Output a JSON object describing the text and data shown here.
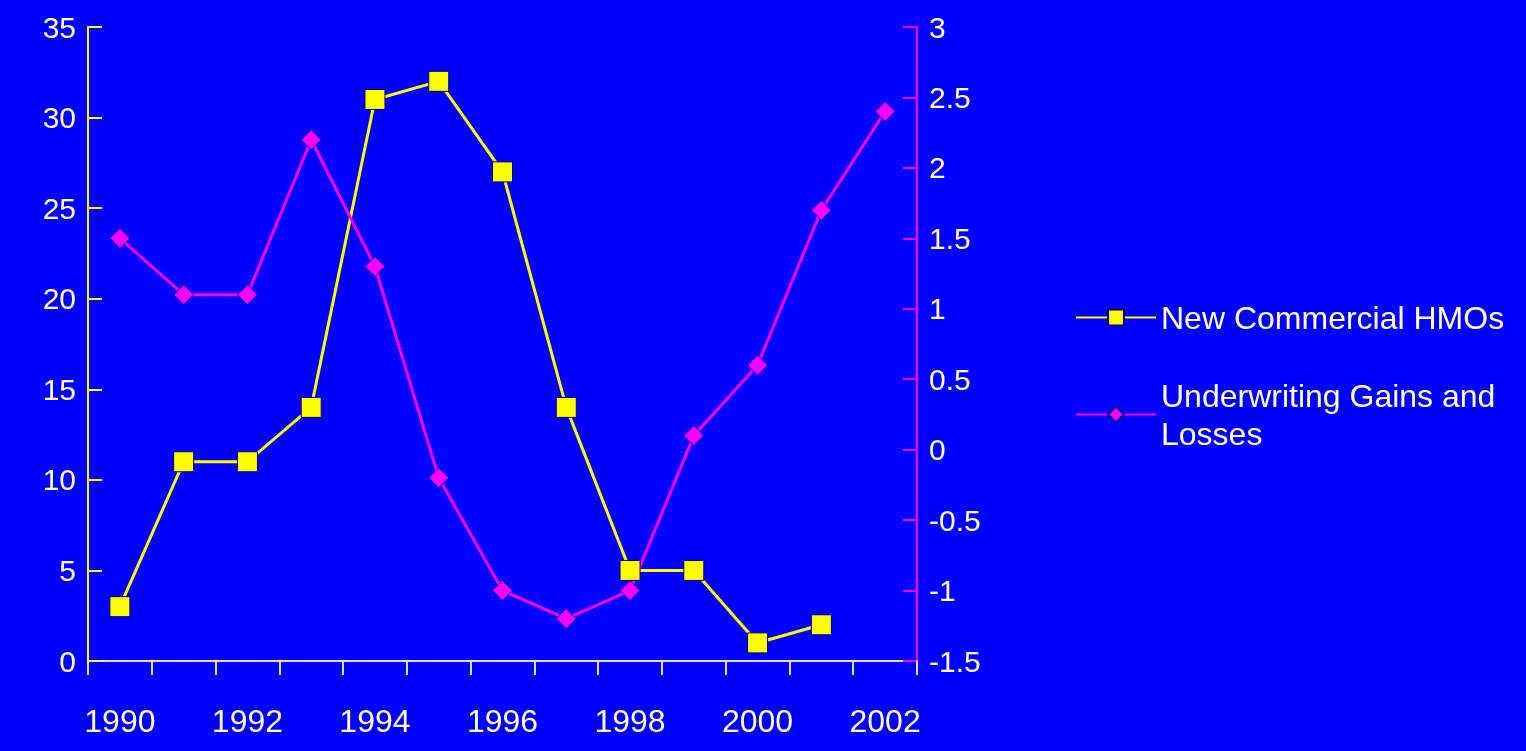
{
  "chart_data": {
    "type": "line",
    "categories": [
      "1990",
      null,
      "1992",
      null,
      "1994",
      null,
      "1996",
      null,
      "1998",
      null,
      "2000",
      null,
      "2002"
    ],
    "series": [
      {
        "name": "New Commercial HMOs",
        "color": "#ffff00",
        "marker": "square",
        "values": [
          3,
          11,
          11,
          14,
          31,
          32,
          27,
          14,
          5,
          5,
          1,
          2,
          null
        ]
      },
      {
        "name": "Underwriting Gains and Losses",
        "color": "#ff00ff",
        "marker": "diamond",
        "axis": "y2",
        "values": [
          1.5,
          1.1,
          1.1,
          2.2,
          1.3,
          -0.2,
          -1.0,
          -1.2,
          -1.0,
          0.1,
          0.6,
          1.7,
          2.4
        ]
      }
    ],
    "ylim": [
      0,
      35
    ],
    "yticks": [
      0,
      5,
      10,
      15,
      20,
      25,
      30,
      35
    ],
    "y2lim": [
      -1.5,
      3
    ],
    "y2ticks": [
      -1.5,
      -1,
      -0.5,
      0,
      0.5,
      1,
      1.5,
      2,
      2.5,
      3
    ],
    "grid": false,
    "legend": "right",
    "line_style": "solid"
  }
}
